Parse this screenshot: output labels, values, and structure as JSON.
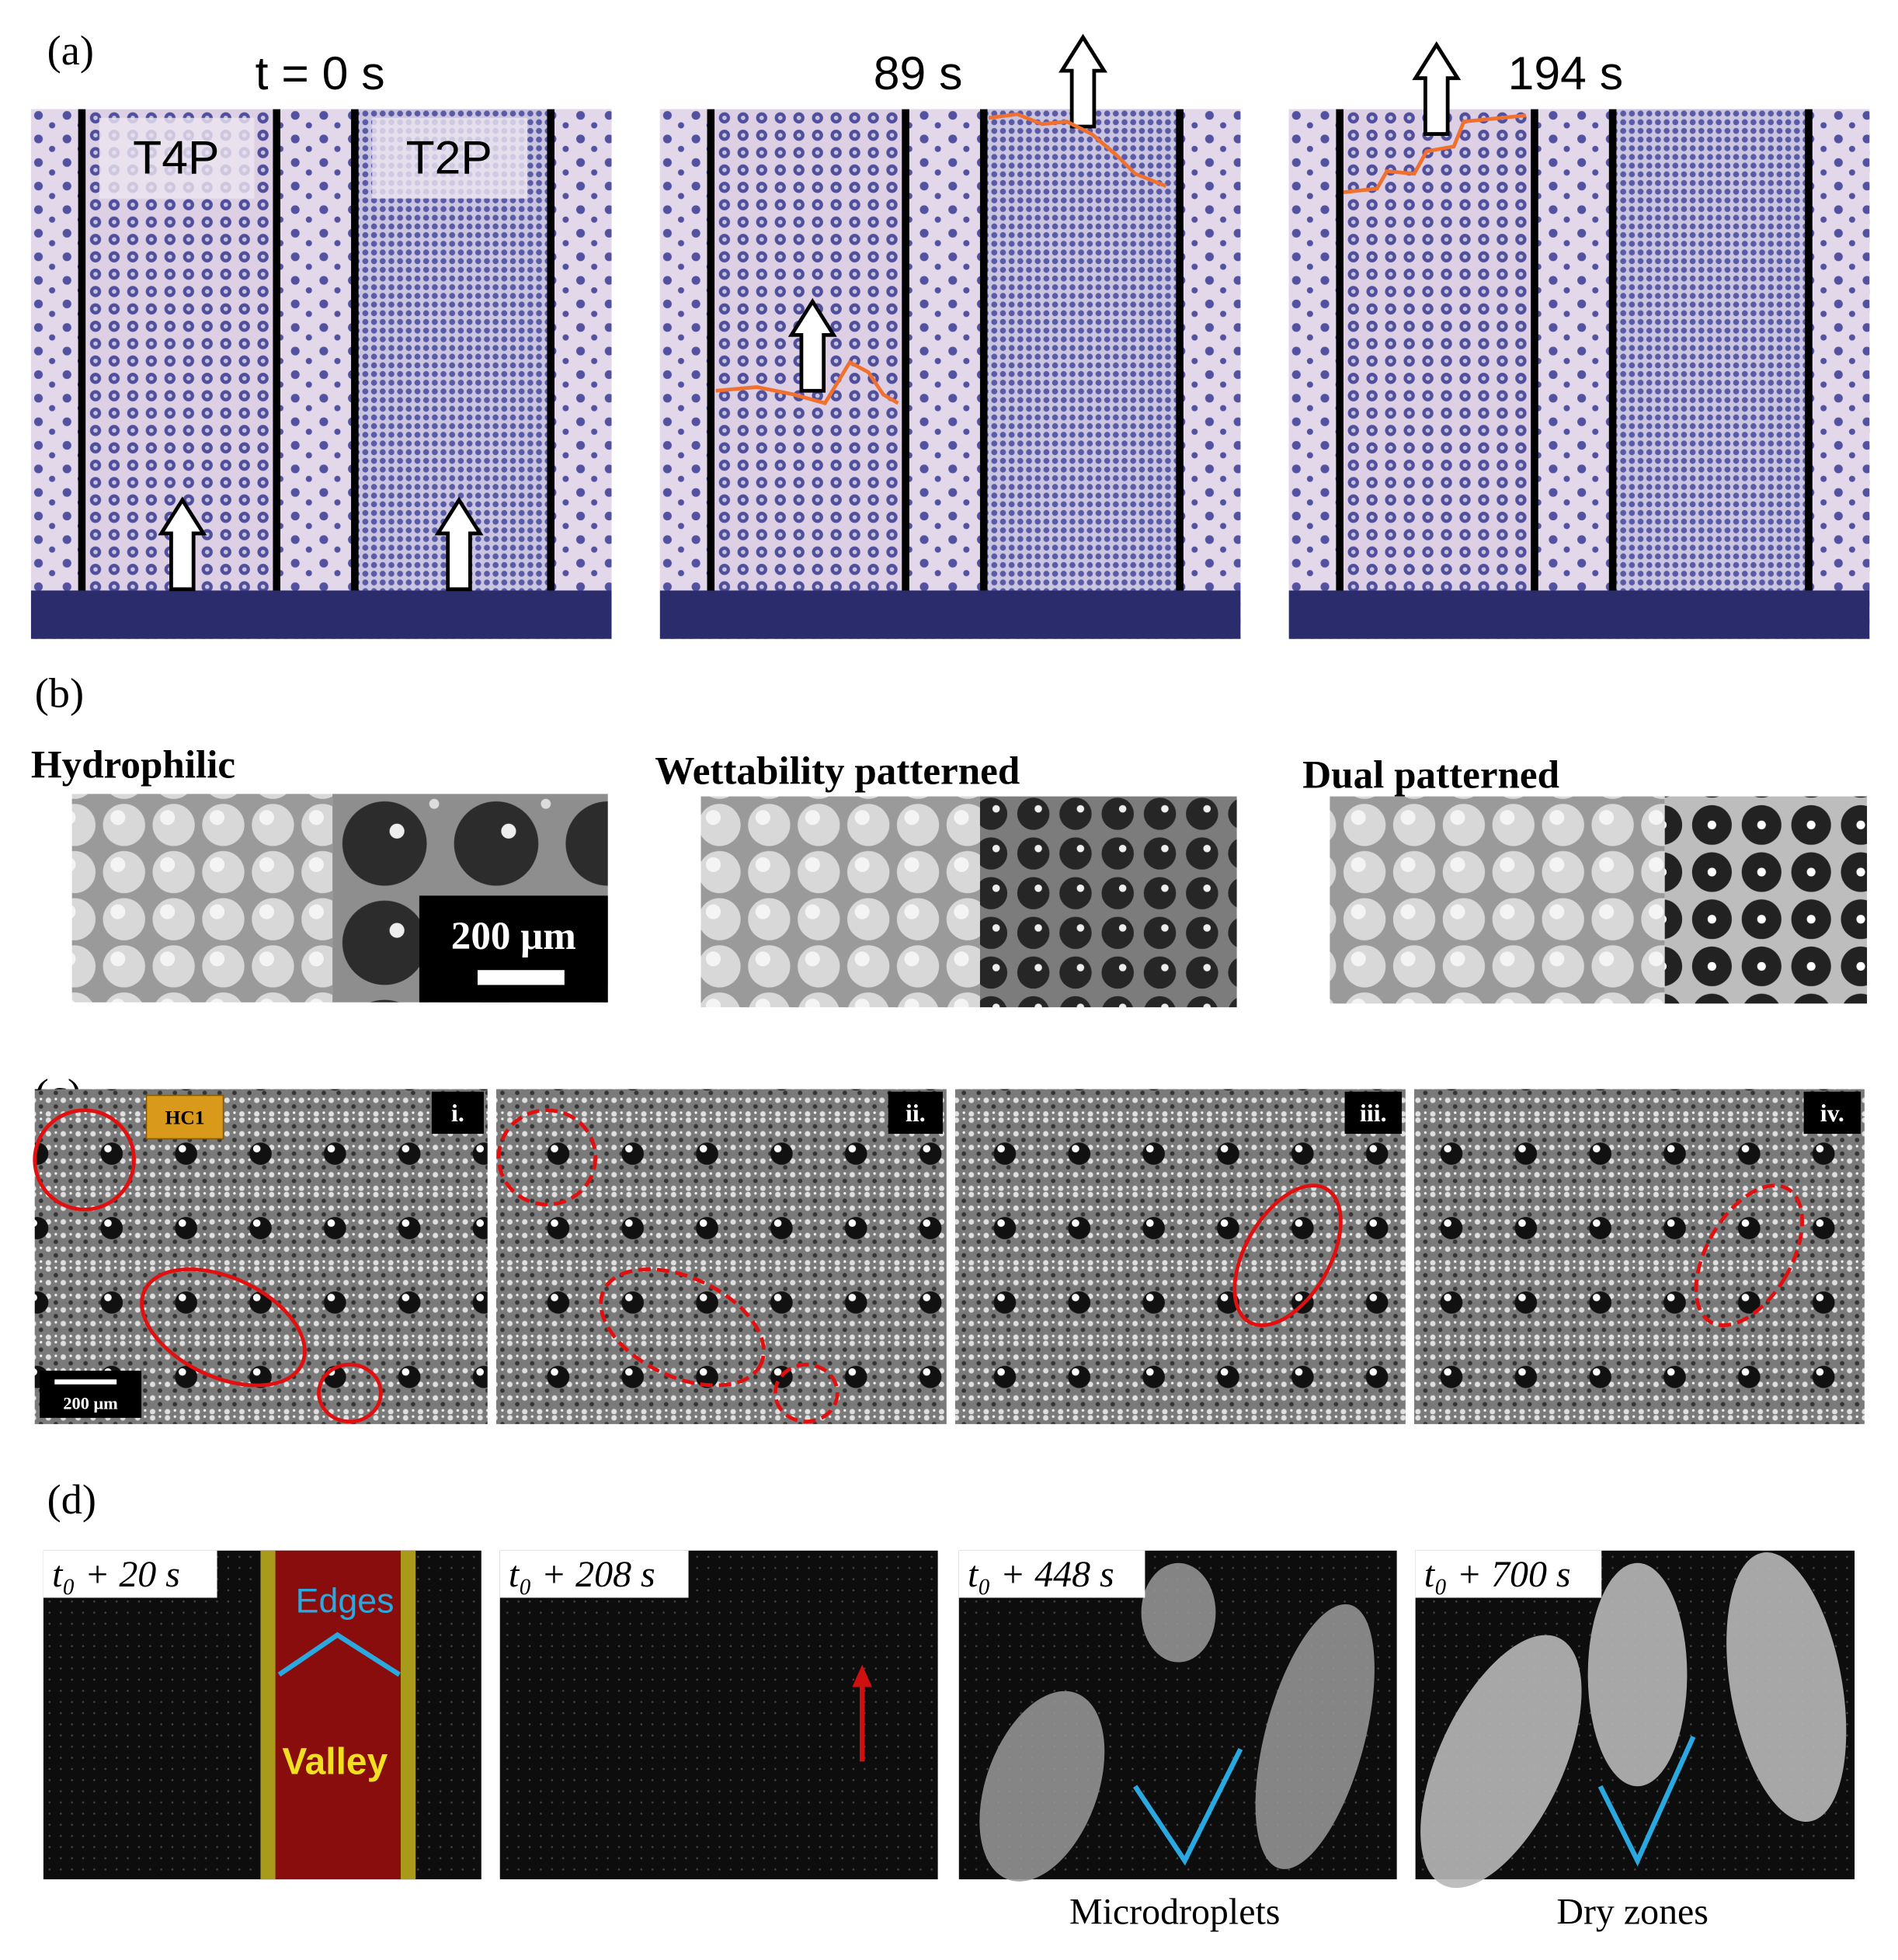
{
  "panels": {
    "a": {
      "label": "(a)",
      "times": [
        "t = 0 s",
        "89 s",
        "194 s"
      ],
      "regions": [
        "T4P",
        "T2P"
      ]
    },
    "b": {
      "label": "(b)",
      "titles": [
        "Hydrophilic",
        "Wettability patterned",
        "Dual patterned"
      ],
      "scale_bar": "200 μm"
    },
    "c": {
      "label": "(c)",
      "tag": "HC1",
      "frames": [
        "i.",
        "ii.",
        "iii.",
        "iv."
      ],
      "scale_bar": "200 μm"
    },
    "d": {
      "label": "(d)",
      "times": [
        "t₀ + 20 s",
        "t₀ + 208 s",
        "t₀ + 448 s",
        "t₀ + 700 s"
      ],
      "edges": "Edges",
      "valley": "Valley",
      "captions": [
        "Microdroplets",
        "Dry zones"
      ]
    }
  }
}
